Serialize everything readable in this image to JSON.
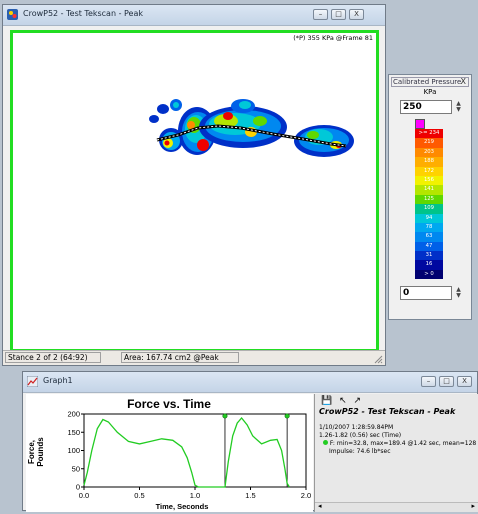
{
  "main_window": {
    "title": "CrowP52 - Test Tekscan - Peak",
    "peak_label": "(*P) 355 KPa @Frame 81",
    "status_stance": "Stance 2 of 2 (64:92)",
    "status_area": "Area: 167.74 cm2 @Peak",
    "buttons": {
      "minimize": "–",
      "maximize": "□",
      "close": "X"
    }
  },
  "legend_panel": {
    "title": "Calibrated Pressure",
    "close": "X",
    "units": "KPa",
    "max_value": "250",
    "min_value": "0",
    "scale": [
      {
        "label": ">= 234",
        "color": "#ee0000"
      },
      {
        "label": "219",
        "color": "#ff5a00"
      },
      {
        "label": "203",
        "color": "#ff8a00"
      },
      {
        "label": "188",
        "color": "#ffae00"
      },
      {
        "label": "172",
        "color": "#ffd200"
      },
      {
        "label": "156",
        "color": "#f2f200"
      },
      {
        "label": "141",
        "color": "#b4e600"
      },
      {
        "label": "125",
        "color": "#60d800"
      },
      {
        "label": "109",
        "color": "#00c48a"
      },
      {
        "label": "94",
        "color": "#00c8d8"
      },
      {
        "label": "78",
        "color": "#00a8f0"
      },
      {
        "label": "63",
        "color": "#0088f0"
      },
      {
        "label": "47",
        "color": "#0060e8"
      },
      {
        "label": "31",
        "color": "#0030c8"
      },
      {
        "label": "16",
        "color": "#0008a0"
      },
      {
        "label": "> 0",
        "color": "#000070"
      }
    ]
  },
  "graph_window": {
    "title": "Graph1",
    "chart_title": "Force vs. Time",
    "info_title": "CrowP52 - Test Tekscan - Peak",
    "info_datetime": "1/10/2007 1:28:59.84PM",
    "info_range": "1.26-1.82 (0.56) sec (Time)",
    "info_stats": "F: min=32.8, max=189.4 @1.42 sec, mean=128",
    "info_impulse": "Impulse: 74.6 lb*sec"
  },
  "chart_data": {
    "type": "line",
    "title": "Force vs. Time",
    "xlabel": "Time, Seconds",
    "ylabel": "Force, Pounds",
    "xlim": [
      0,
      2.0
    ],
    "ylim": [
      0,
      200
    ],
    "xticks": [
      "0.0",
      "0.5",
      "1.0",
      "1.5",
      "2.0"
    ],
    "yticks": [
      "0",
      "50",
      "100",
      "150",
      "200"
    ],
    "series": [
      {
        "color": "#22cc22",
        "x": [
          0.0,
          0.03,
          0.07,
          0.12,
          0.17,
          0.22,
          0.3,
          0.4,
          0.5,
          0.6,
          0.7,
          0.8,
          0.88,
          0.93,
          0.97,
          1.0,
          1.03,
          1.06,
          1.1,
          1.2,
          1.27,
          1.3,
          1.34,
          1.38,
          1.42,
          1.47,
          1.52,
          1.6,
          1.68,
          1.74,
          1.78,
          1.81,
          1.83,
          1.85
        ],
        "y": [
          5,
          40,
          100,
          160,
          185,
          178,
          150,
          125,
          118,
          125,
          132,
          128,
          110,
          80,
          40,
          5,
          0,
          0,
          0,
          0,
          0,
          70,
          140,
          175,
          189,
          170,
          140,
          118,
          128,
          130,
          100,
          50,
          10,
          0
        ]
      }
    ],
    "markers_x": [
      1.27,
      1.83
    ],
    "grid": false
  }
}
